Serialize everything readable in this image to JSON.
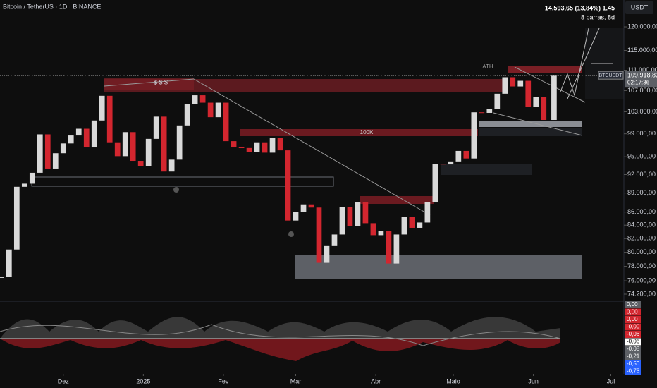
{
  "chart_data": {
    "type": "candlestick",
    "title": "Bitcoin / TetherUS · 1D · BINANCE",
    "currency": "USDT",
    "symbol": "BTCUSDT",
    "last_price_label": "109.918,83",
    "countdown": "02:17:36",
    "measure_label": "14.593,65 (13,84%) 1.45",
    "measure_bars": "8 barras, 8d",
    "annotations": [
      "$ $ $",
      "ATH",
      "100K"
    ],
    "log_scale": true,
    "up_color": "#d9d9d9",
    "down_color": "#d3262f",
    "x": [
      0,
      3,
      6,
      9,
      12,
      15,
      18,
      21,
      24,
      27,
      30,
      33,
      36,
      39,
      42,
      45,
      48,
      51,
      54,
      57,
      60,
      63,
      66,
      69,
      72,
      75,
      78,
      81,
      84,
      87,
      90,
      93,
      96,
      99,
      102,
      105,
      108,
      111,
      114,
      117,
      120,
      123,
      126,
      129,
      132,
      135,
      138,
      141,
      144,
      147,
      150,
      153,
      156,
      159,
      162,
      165,
      168,
      171,
      174,
      177,
      180,
      183,
      186,
      189,
      192,
      195,
      198,
      201,
      204,
      207,
      210,
      214
    ],
    "series": [
      {
        "name": "BTCUSDT",
        "values": [
          76500,
          80400,
          90000,
          90500,
          92300,
          98900,
          93000,
          95600,
          97300,
          98700,
          99900,
          96600,
          101400,
          106000,
          97500,
          95100,
          99300,
          94300,
          93400,
          98100,
          102100,
          92500,
          94500,
          100500,
          104400,
          106100,
          104700,
          102000,
          104700,
          97700,
          96600,
          96500,
          95800,
          97500,
          95700,
          98300,
          96100,
          84700,
          86000,
          87200,
          86700,
          78500,
          80900,
          82600,
          86800,
          83900,
          87500,
          84300,
          82500,
          83100,
          78400,
          82600,
          85300,
          83600,
          84400,
          87500,
          93800,
          93700,
          94200,
          96000,
          94700,
          102900,
          102800,
          103500,
          106400,
          109600,
          107800,
          108900,
          103900,
          105800,
          101500,
          109918.83
        ]
      }
    ],
    "xlim": [
      -0.5,
      240.5
    ],
    "xticks": [
      {
        "value": 24,
        "label": "Dez"
      },
      {
        "value": 55,
        "label": "2025"
      },
      {
        "value": 86,
        "label": "Fev"
      },
      {
        "value": 114,
        "label": "Mar"
      },
      {
        "value": 145,
        "label": "Abr"
      },
      {
        "value": 175,
        "label": "Maio"
      },
      {
        "value": 206,
        "label": "Jun"
      },
      {
        "value": 236,
        "label": "Jul"
      }
    ],
    "ylim": [
      73450,
      125930
    ],
    "yticks": [
      {
        "value": 120000,
        "label": "120.000,00"
      },
      {
        "value": 115000,
        "label": "115.000,00"
      },
      {
        "value": 111000,
        "label": "111.000,00"
      },
      {
        "value": 107000,
        "label": "107.000,00"
      },
      {
        "value": 103000,
        "label": "103.000,00"
      },
      {
        "value": 99000,
        "label": "99.000,00"
      },
      {
        "value": 95000,
        "label": "95.000,00"
      },
      {
        "value": 92000,
        "label": "92.000,00"
      },
      {
        "value": 89000,
        "label": "89.000,00"
      },
      {
        "value": 86000,
        "label": "86.000,00"
      },
      {
        "value": 84000,
        "label": "84.000,00"
      },
      {
        "value": 82000,
        "label": "82.000,00"
      },
      {
        "value": 80000,
        "label": "80.000,00"
      },
      {
        "value": 78000,
        "label": "78.000,00"
      },
      {
        "value": 76000,
        "label": "76.000,00"
      },
      {
        "value": 74200,
        "label": "74.200,00"
      }
    ],
    "oscillator_labels": [
      "0,00",
      "0,00",
      "0,00",
      "-0,00",
      "-0,06",
      "-0,06",
      "-0,08",
      "-0,21",
      "-0,50",
      "-0,75"
    ]
  }
}
